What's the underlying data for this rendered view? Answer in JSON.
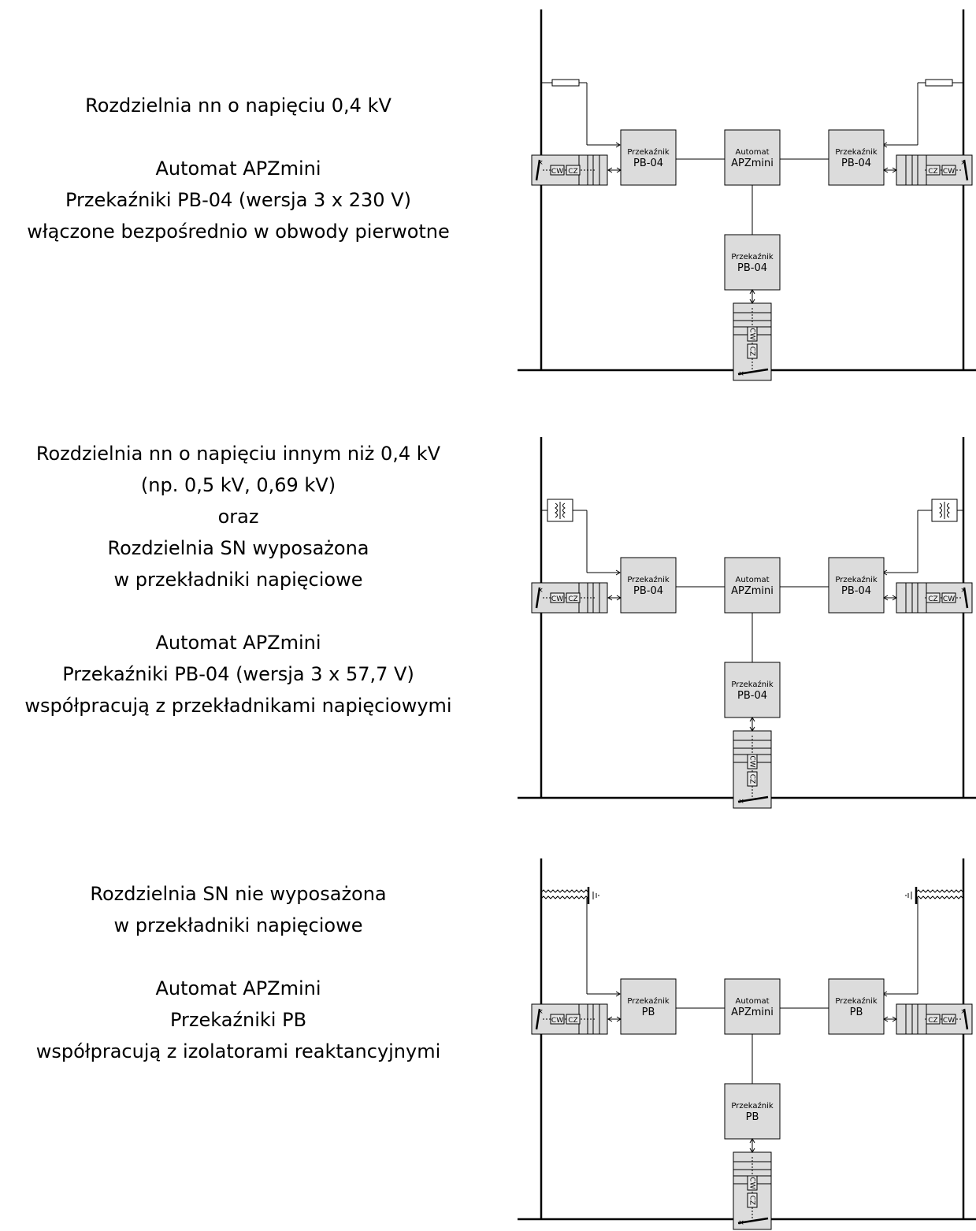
{
  "sections": [
    {
      "description": [
        "Rozdzielnia nn o napięciu 0,4 kV",
        "",
        "Automat APZmini",
        "Przekaźniki PB-04 (wersja 3 x 230 V)",
        "włączone bezpośrednio w obwody pierwotne"
      ],
      "sensor": "fuse",
      "automat": {
        "title": "Automat",
        "name": "APZmini"
      },
      "relay": {
        "title": "Przekaźnik",
        "name": "PB-04"
      },
      "breaker_labels": [
        "CW",
        "CZ"
      ]
    },
    {
      "description": [
        "Rozdzielnia nn o napięciu innym niż 0,4 kV",
        "(np. 0,5 kV, 0,69 kV)",
        "oraz",
        "Rozdzielnia SN wyposażona",
        "w przekładniki napięciowe",
        "",
        "Automat APZmini",
        "Przekaźniki PB-04 (wersja 3 x 57,7 V)",
        "współpracują z przekładnikami napięciowymi"
      ],
      "sensor": "transformer",
      "automat": {
        "title": "Automat",
        "name": "APZmini"
      },
      "relay": {
        "title": "Przekaźnik",
        "name": "PB-04"
      },
      "breaker_labels": [
        "CW",
        "CZ"
      ]
    },
    {
      "description": [
        "Rozdzielnia SN nie wyposażona",
        "w przekładniki napięciowe",
        "",
        "Automat APZmini",
        "Przekaźniki PB",
        "współpracują z izolatorami reaktancyjnymi"
      ],
      "sensor": "reactance-insulator",
      "automat": {
        "title": "Automat",
        "name": "APZmini"
      },
      "relay": {
        "title": "Przekaźnik",
        "name": "PB"
      },
      "breaker_labels": [
        "CW",
        "CZ"
      ]
    }
  ]
}
